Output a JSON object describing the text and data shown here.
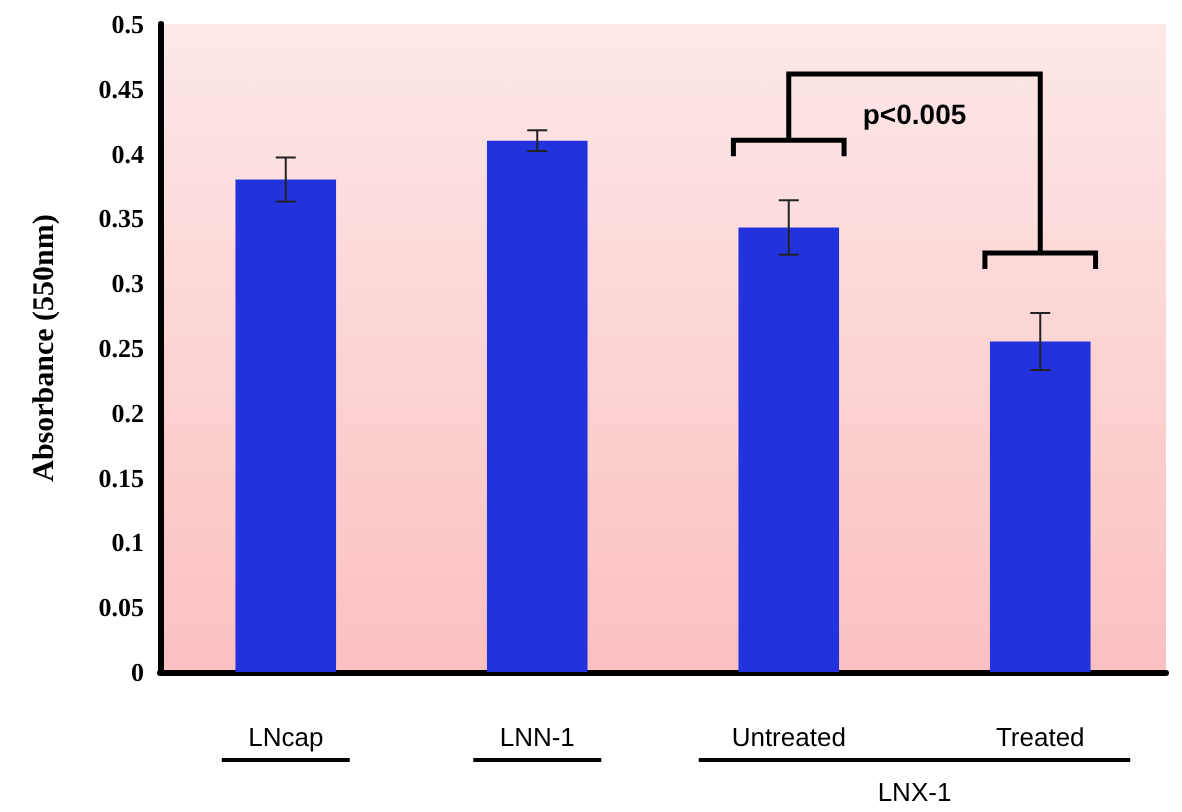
{
  "chart_data": {
    "type": "bar",
    "ylabel": "Absorbance (550nm)",
    "categories": [
      "LNcap",
      "LNN-1",
      "Untreated",
      "Treated"
    ],
    "values": [
      0.38,
      0.41,
      0.343,
      0.255
    ],
    "errors": [
      0.017,
      0.008,
      0.021,
      0.022
    ],
    "color": "#2233dd",
    "ylim": [
      0,
      0.5
    ],
    "yticks": [
      0,
      0.05,
      0.1,
      0.15,
      0.2,
      0.25,
      0.3,
      0.35,
      0.4,
      0.45,
      0.5
    ],
    "grid": false,
    "annotations": [
      "p<0.005",
      "LNX-1"
    ]
  }
}
